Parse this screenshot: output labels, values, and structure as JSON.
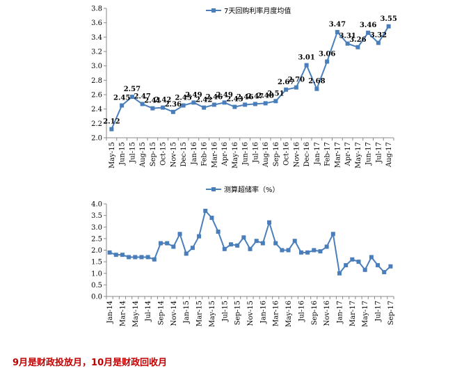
{
  "chart_data": [
    {
      "type": "line",
      "legend": "7天回购利率月度均值",
      "legend_position": "top-right",
      "categories": [
        "May-15",
        "Jun-15",
        "Jul-15",
        "Aug-15",
        "Sep-15",
        "Oct-15",
        "Nov-15",
        "Dec-15",
        "Jan-16",
        "Feb-16",
        "Mar-16",
        "Apr-16",
        "May-16",
        "Jun-16",
        "Jul-16",
        "Aug-16",
        "Sep-16",
        "Oct-16",
        "Nov-16",
        "Dec-16",
        "Jan-17",
        "Feb-17",
        "Mar-17",
        "Apr-17",
        "May-17",
        "Jun-17",
        "Jul-17",
        "Aug-17"
      ],
      "values": [
        2.12,
        2.45,
        2.57,
        2.47,
        2.41,
        2.42,
        2.36,
        2.45,
        2.49,
        2.42,
        2.46,
        2.49,
        2.43,
        2.46,
        2.47,
        2.48,
        2.51,
        2.67,
        2.7,
        3.01,
        2.68,
        3.06,
        3.47,
        3.31,
        3.26,
        3.46,
        3.32,
        3.55
      ],
      "data_labels": [
        "2.12",
        "2.45",
        "2.57",
        "2.47",
        "2.41",
        "2.42",
        "2.36",
        "2.45",
        "2.49",
        "2.42",
        "2.46",
        "2.49",
        "2.43",
        "2.46",
        "2.47",
        "2.48",
        "2.51",
        "2.67",
        "2.70",
        "3.01",
        "2.68",
        "3.06",
        "3.47",
        "3.31",
        "3.26",
        "3.46",
        "3.32",
        "3.55"
      ],
      "yticks": [
        "2.0",
        "2.2",
        "2.4",
        "2.6",
        "2.8",
        "3.0",
        "3.2",
        "3.4",
        "3.6",
        "3.8"
      ],
      "ylim": [
        2.0,
        3.8
      ],
      "grid": false,
      "color": "#4a7ebb"
    },
    {
      "type": "line",
      "legend": "测算超储率（%）",
      "legend_position": "top-center",
      "categories": [
        "Jan-14",
        "Feb-14",
        "Mar-14",
        "Apr-14",
        "May-14",
        "Jun-14",
        "Jul-14",
        "Aug-14",
        "Sep-14",
        "Oct-14",
        "Nov-14",
        "Dec-14",
        "Jan-15",
        "Feb-15",
        "Mar-15",
        "Apr-15",
        "May-15",
        "Jun-15",
        "Jul-15",
        "Aug-15",
        "Sep-15",
        "Oct-15",
        "Nov-15",
        "Dec-15",
        "Jan-16",
        "Feb-16",
        "Mar-16",
        "Apr-16",
        "May-16",
        "Jun-16",
        "Jul-16",
        "Aug-16",
        "Sep-16",
        "Oct-16",
        "Nov-16",
        "Dec-16",
        "Jan-17",
        "Feb-17",
        "Mar-17",
        "Apr-17",
        "May-17",
        "Jun-17",
        "Jul-17",
        "Aug-17",
        "Sep-17"
      ],
      "xtick_labels": [
        "Jan-14",
        "Mar-14",
        "May-14",
        "Jul-14",
        "Sep-14",
        "Nov-14",
        "Jan-15",
        "Mar-15",
        "May-15",
        "Jul-15",
        "Sep-15",
        "Nov-15",
        "Jan-16",
        "Mar-16",
        "May-16",
        "Jul-16",
        "Sep-16",
        "Nov-16",
        "Jan-17",
        "Mar-17",
        "May-17",
        "Jul-17",
        "Sep-17"
      ],
      "values": [
        1.9,
        1.8,
        1.8,
        1.7,
        1.7,
        1.7,
        1.7,
        1.6,
        2.3,
        2.3,
        2.15,
        2.7,
        1.85,
        2.1,
        2.6,
        3.7,
        3.4,
        2.8,
        2.05,
        2.25,
        2.2,
        2.55,
        2.05,
        2.4,
        2.3,
        3.2,
        2.3,
        2.0,
        2.0,
        2.4,
        1.9,
        1.9,
        2.0,
        1.95,
        2.15,
        2.7,
        1.0,
        1.35,
        1.6,
        1.5,
        1.15,
        1.7,
        1.35,
        1.05,
        1.3
      ],
      "yticks": [
        "0.0",
        "0.5",
        "1.0",
        "1.5",
        "2.0",
        "2.5",
        "3.0",
        "3.5",
        "4.0"
      ],
      "ylim": [
        0,
        4.0
      ],
      "grid": false,
      "color": "#4a7ebb"
    }
  ],
  "caption": "9月是财政投放月，10月是财政回收月"
}
